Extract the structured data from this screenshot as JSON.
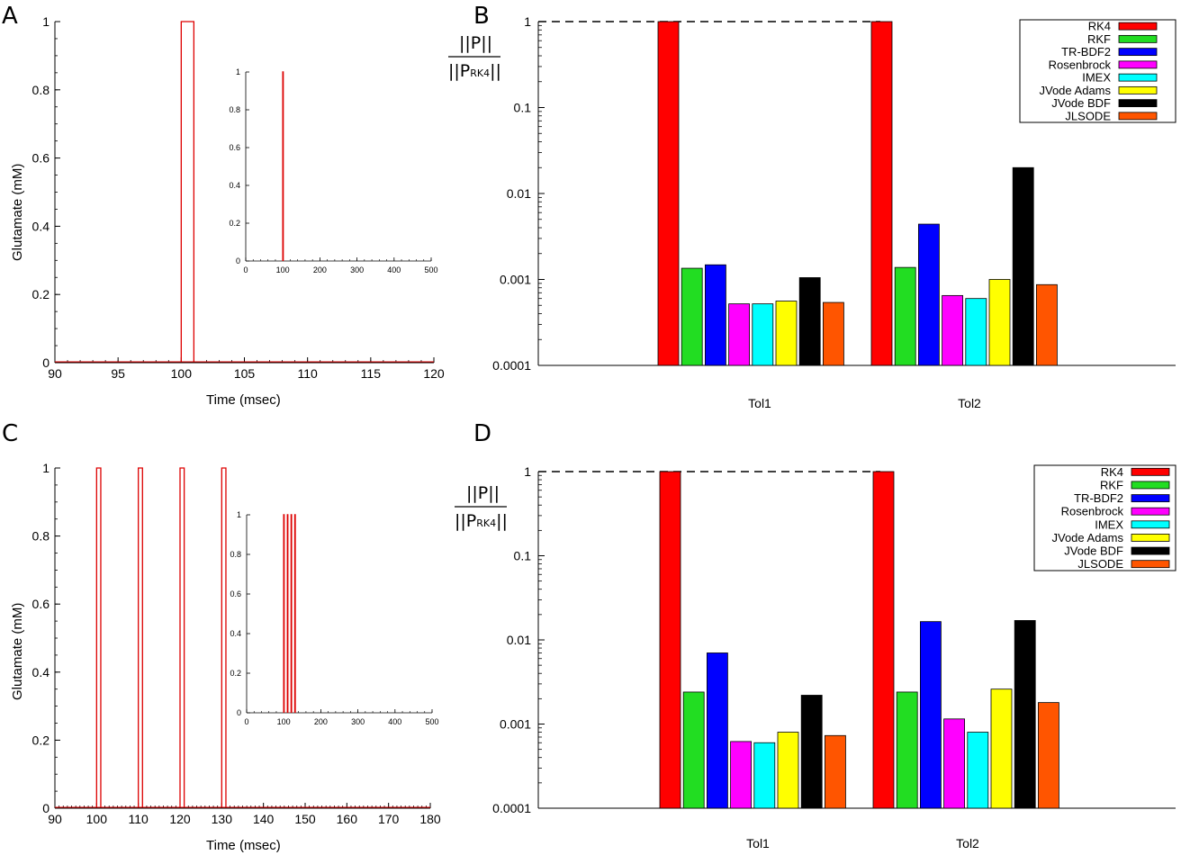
{
  "panel_letters": [
    "A",
    "B",
    "C",
    "D"
  ],
  "colors": {
    "pulse": "#dd0000",
    "RK4": "#ff0000",
    "RKF": "#22dd22",
    "TR-BDF2": "#0000ff",
    "Rosenbrock": "#ff00ff",
    "IMEX": "#00ffff",
    "JVode Adams": "#ffff00",
    "JVode BDF": "#000000",
    "JLSODE": "#ff5500"
  },
  "ratio_label": {
    "numerator": "||P||",
    "denominator_main": "||P",
    "denominator_sub": "RK4",
    "denominator_end": "||"
  },
  "chart_data": [
    {
      "id": "A",
      "type": "line",
      "xlabel": "Time (msec)",
      "ylabel": "Glutamate (mM)",
      "xlim": [
        90,
        120
      ],
      "ylim": [
        0,
        1
      ],
      "xticks": [
        90,
        95,
        100,
        105,
        110,
        115,
        120
      ],
      "yticks": [
        0,
        0.2,
        0.4,
        0.6,
        0.8,
        1
      ],
      "pulses": [
        {
          "start": 100,
          "end": 101,
          "value": 1
        }
      ],
      "inset": {
        "xlim": [
          0,
          500
        ],
        "ylim": [
          0,
          1
        ],
        "xticks": [
          0,
          100,
          200,
          300,
          400,
          500
        ],
        "yticks": [
          0,
          0.2,
          0.4,
          0.6,
          0.8,
          1
        ],
        "pulses": [
          {
            "start": 100,
            "end": 101,
            "value": 1
          }
        ]
      }
    },
    {
      "id": "B",
      "type": "bar",
      "yscale": "log",
      "ylim": [
        0.0001,
        1
      ],
      "yticks": [
        "0.0001",
        "0.001",
        "0.01",
        "0.1",
        "1"
      ],
      "categories": [
        "Tol1",
        "Tol2"
      ],
      "reference_line": 1,
      "legend_position": "top-right",
      "series": [
        {
          "name": "RK4",
          "values": [
            1,
            1
          ]
        },
        {
          "name": "RKF",
          "values": [
            0.00135,
            0.00138
          ]
        },
        {
          "name": "TR-BDF2",
          "values": [
            0.00148,
            0.0044
          ]
        },
        {
          "name": "Rosenbrock",
          "values": [
            0.00052,
            0.00065
          ]
        },
        {
          "name": "IMEX",
          "values": [
            0.00052,
            0.0006
          ]
        },
        {
          "name": "JVode Adams",
          "values": [
            0.00056,
            0.001
          ]
        },
        {
          "name": "JVode BDF",
          "values": [
            0.00105,
            0.02
          ]
        },
        {
          "name": "JLSODE",
          "values": [
            0.00054,
            0.00087
          ]
        }
      ]
    },
    {
      "id": "C",
      "type": "line",
      "xlabel": "Time (msec)",
      "ylabel": "Glutamate (mM)",
      "xlim": [
        90,
        180
      ],
      "ylim": [
        0,
        1
      ],
      "xticks": [
        90,
        100,
        110,
        120,
        130,
        140,
        150,
        160,
        170,
        180
      ],
      "yticks": [
        0,
        0.2,
        0.4,
        0.6,
        0.8,
        1
      ],
      "pulses": [
        {
          "start": 100,
          "end": 101,
          "value": 1
        },
        {
          "start": 110,
          "end": 111,
          "value": 1
        },
        {
          "start": 120,
          "end": 121,
          "value": 1
        },
        {
          "start": 130,
          "end": 131,
          "value": 1
        }
      ],
      "inset": {
        "xlim": [
          0,
          500
        ],
        "ylim": [
          0,
          1
        ],
        "xticks": [
          0,
          100,
          200,
          300,
          400,
          500
        ],
        "yticks": [
          0,
          0.2,
          0.4,
          0.6,
          0.8,
          1
        ],
        "pulses": [
          {
            "start": 100,
            "end": 101,
            "value": 1
          },
          {
            "start": 110,
            "end": 111,
            "value": 1
          },
          {
            "start": 120,
            "end": 121,
            "value": 1
          },
          {
            "start": 130,
            "end": 131,
            "value": 1
          }
        ]
      }
    },
    {
      "id": "D",
      "type": "bar",
      "yscale": "log",
      "ylim": [
        0.0001,
        1
      ],
      "yticks": [
        "0.0001",
        "0.001",
        "0.01",
        "0.1",
        "1"
      ],
      "categories": [
        "Tol1",
        "Tol2"
      ],
      "reference_line": 1,
      "legend_position": "top-right",
      "series": [
        {
          "name": "RK4",
          "values": [
            1,
            1
          ]
        },
        {
          "name": "RKF",
          "values": [
            0.0024,
            0.0024
          ]
        },
        {
          "name": "TR-BDF2",
          "values": [
            0.007,
            0.0165
          ]
        },
        {
          "name": "Rosenbrock",
          "values": [
            0.00062,
            0.00115
          ]
        },
        {
          "name": "IMEX",
          "values": [
            0.0006,
            0.0008
          ]
        },
        {
          "name": "JVode Adams",
          "values": [
            0.0008,
            0.0026
          ]
        },
        {
          "name": "JVode BDF",
          "values": [
            0.0022,
            0.017
          ]
        },
        {
          "name": "JLSODE",
          "values": [
            0.00073,
            0.0018
          ]
        }
      ]
    }
  ]
}
